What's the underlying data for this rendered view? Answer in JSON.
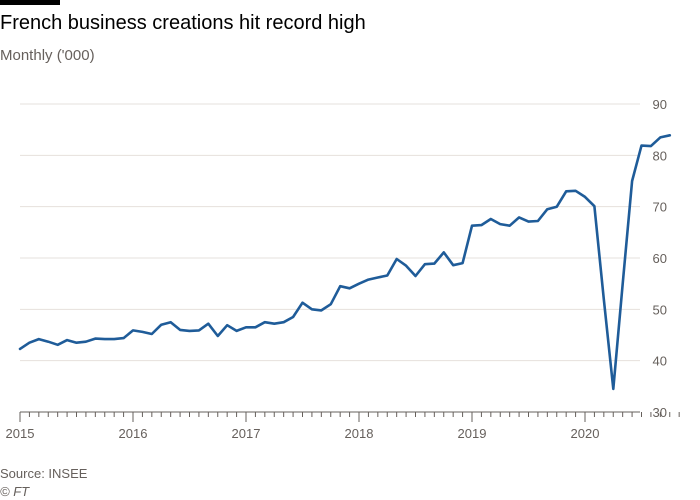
{
  "header": {
    "title": "French business creations hit record high",
    "subtitle": "Monthly ('000)"
  },
  "footer": {
    "source": "Source: INSEE",
    "credit": "© FT"
  },
  "colors": {
    "line": "#1f5c99",
    "grid": "#e6e1dc",
    "axis": "#66605c",
    "accent_bar": "#000000"
  },
  "chart_data": {
    "type": "line",
    "title": "French business creations hit record high",
    "subtitle": "Monthly ('000)",
    "xlabel": "",
    "ylabel": "",
    "ylim": [
      30,
      90
    ],
    "yticks": [
      30,
      40,
      50,
      60,
      70,
      80,
      90
    ],
    "y_axis_side": "right",
    "grid": true,
    "x_tick_labels": [
      "2015",
      "2016",
      "2017",
      "2018",
      "2019",
      "2020"
    ],
    "x_start": "2015-01",
    "x_frequency": "monthly",
    "series": [
      {
        "values": [
          42.3,
          43.5,
          44.2,
          43.7,
          43.1,
          44.0,
          43.5,
          43.7,
          44.3,
          44.2,
          44.2,
          44.4,
          45.9,
          45.6,
          45.2,
          47.0,
          47.5,
          46.0,
          45.8,
          45.9,
          47.2,
          44.8,
          46.9,
          45.8,
          46.5,
          46.5,
          47.5,
          47.2,
          47.5,
          48.5,
          51.3,
          50.0,
          49.8,
          51.0,
          54.5,
          54.1,
          55.0,
          55.8,
          56.2,
          56.6,
          59.8,
          58.5,
          56.5,
          58.8,
          58.9,
          61.1,
          58.6,
          59.0,
          66.3,
          66.4,
          67.6,
          66.6,
          66.3,
          67.9,
          67.1,
          67.2,
          69.5,
          70.0,
          73.0,
          73.1,
          71.9,
          70.1,
          52.0,
          34.5,
          55.0,
          75.0,
          81.9,
          81.8,
          83.5,
          83.9
        ]
      }
    ]
  }
}
